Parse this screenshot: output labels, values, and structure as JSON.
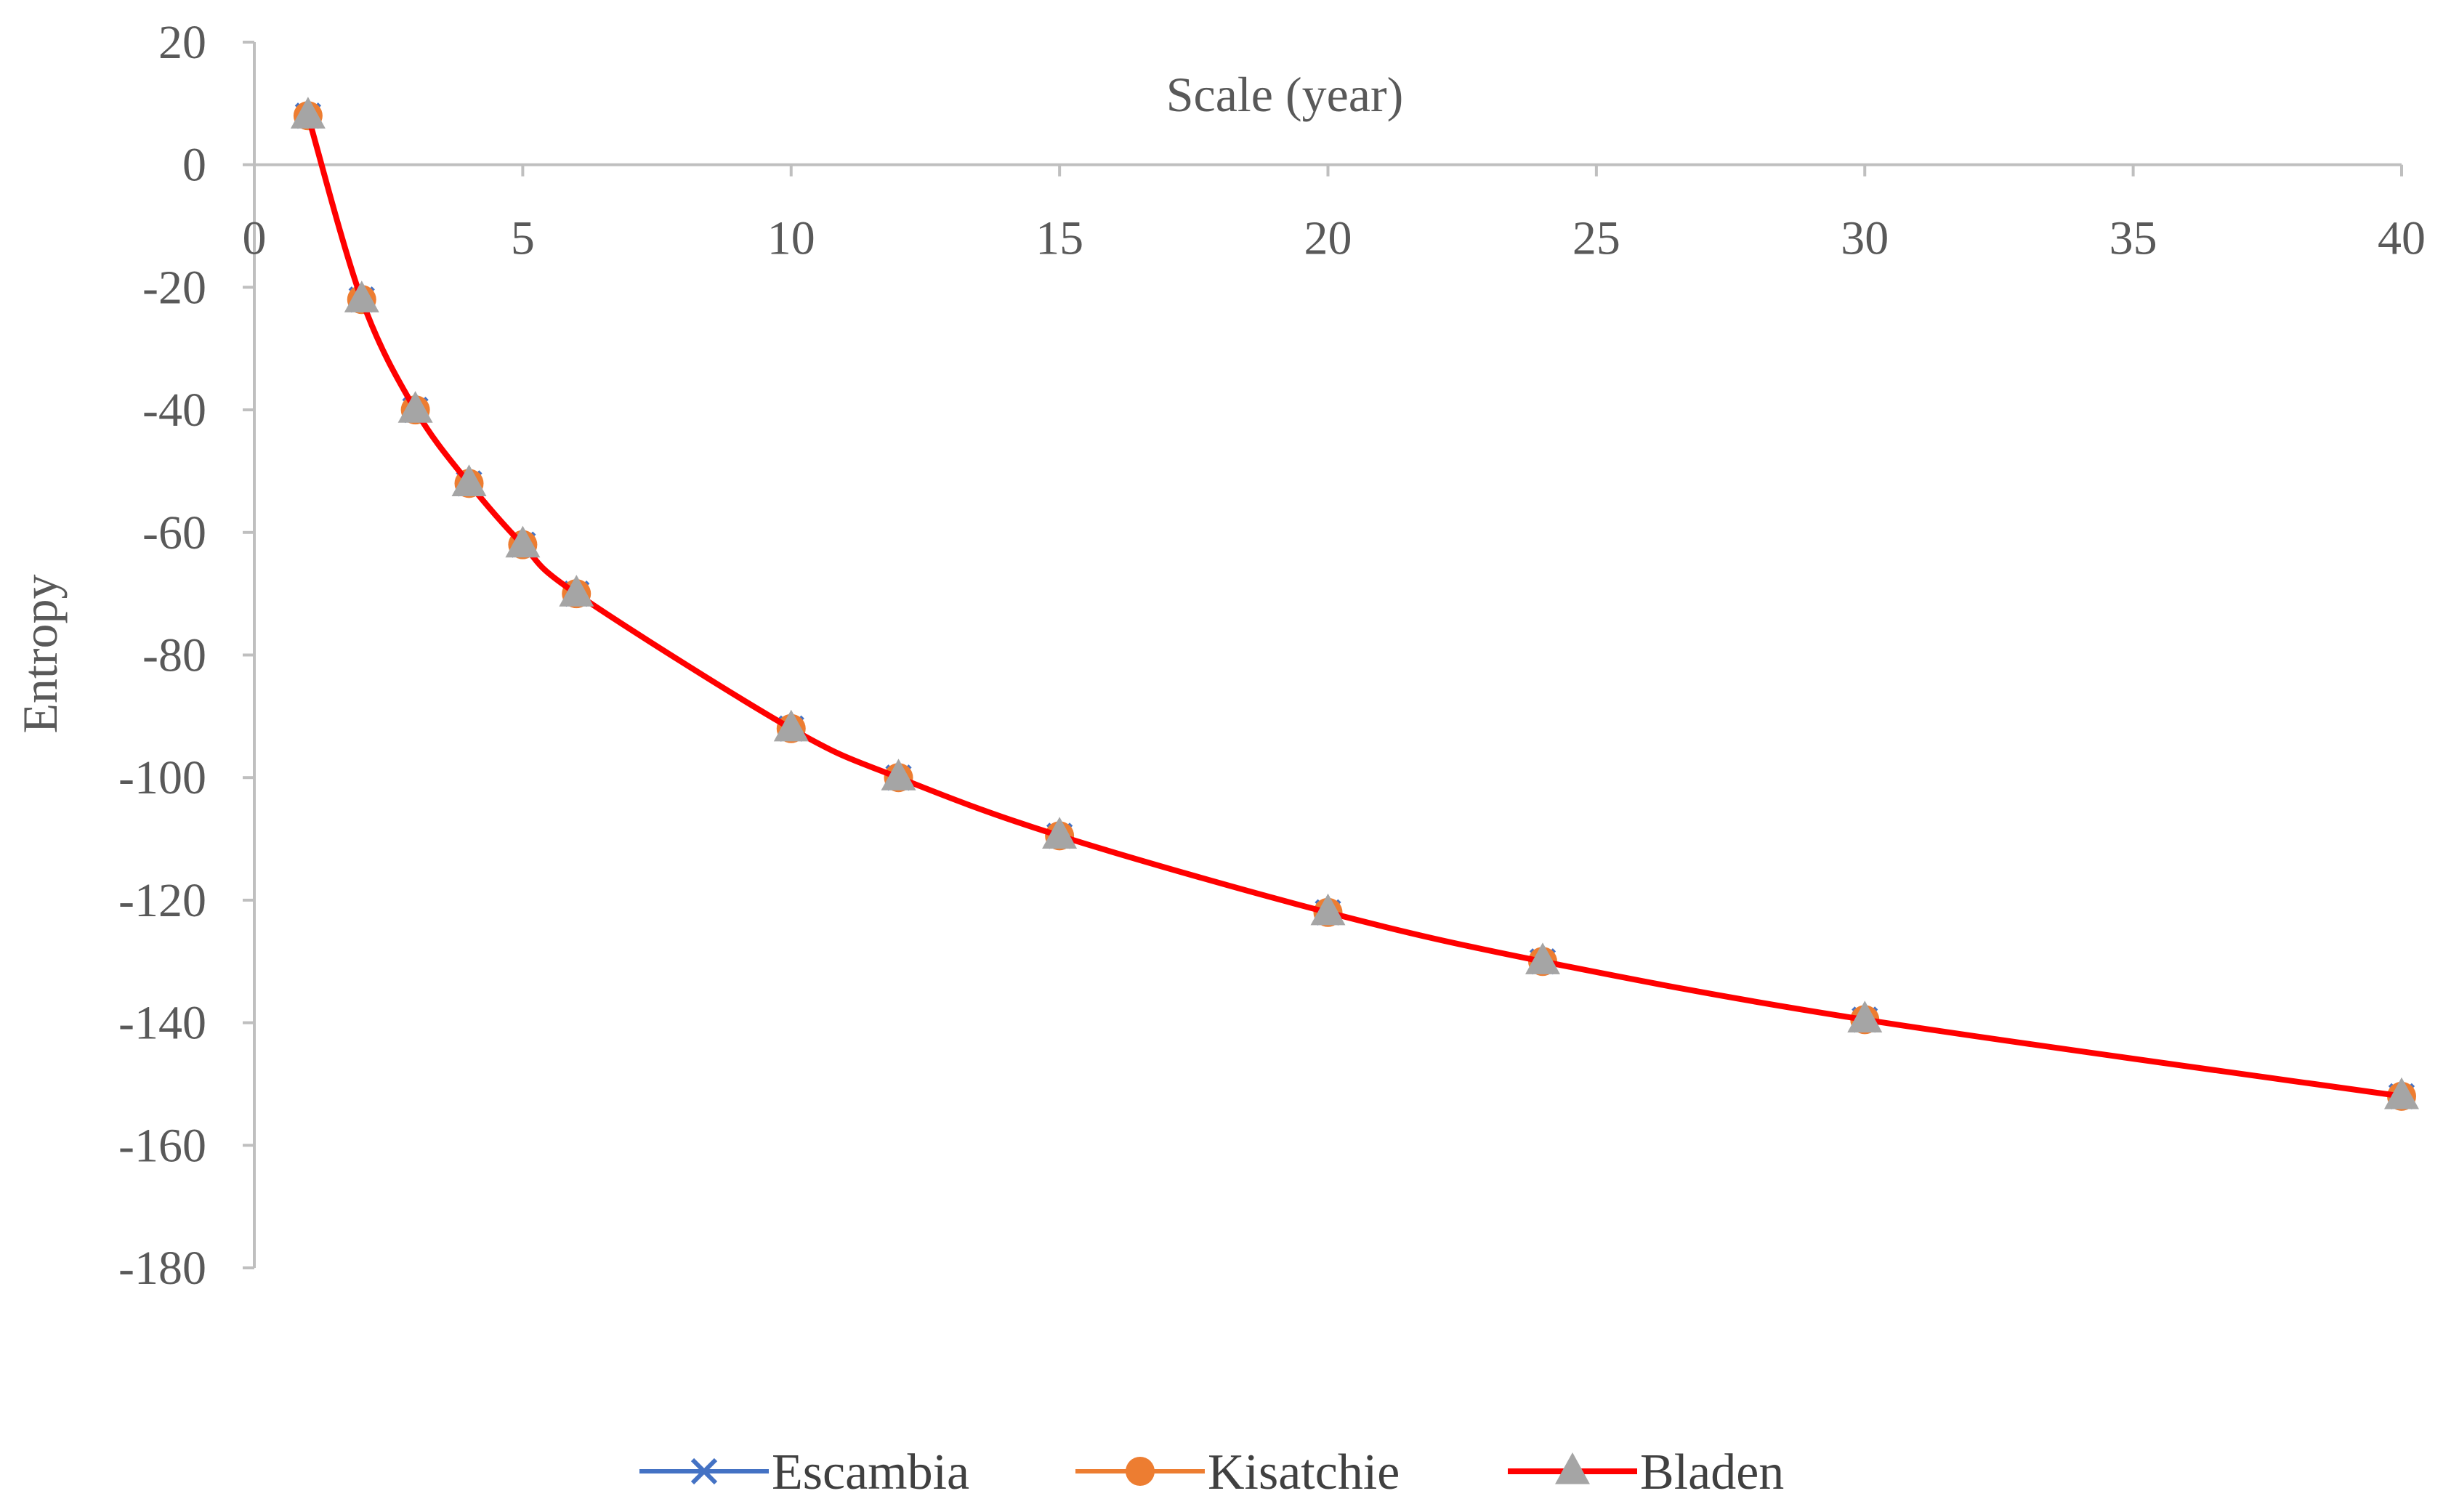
{
  "chart_data": {
    "type": "line",
    "title": "",
    "xlabel": "Scale (year)",
    "ylabel": "Entropy",
    "xlim": [
      0,
      40
    ],
    "ylim": [
      -180,
      20
    ],
    "xticks": [
      0,
      5,
      10,
      15,
      20,
      25,
      30,
      35,
      40
    ],
    "yticks": [
      20,
      0,
      -20,
      -40,
      -60,
      -80,
      -100,
      -120,
      -140,
      -160,
      -180
    ],
    "x_axis_crosses_at": 0,
    "grid": false,
    "legend_position": "bottom",
    "x": [
      1,
      2,
      3,
      4,
      5,
      6,
      10,
      12,
      15,
      20,
      24,
      30,
      40
    ],
    "series": [
      {
        "name": "Escambia",
        "color": "#4472C4",
        "marker": "x",
        "values": [
          8,
          -22,
          -40,
          -52,
          -62,
          -70,
          -92,
          -100,
          -109.5,
          -122,
          -130,
          -139.5,
          -152
        ]
      },
      {
        "name": "Kisatchie",
        "color": "#ED7D31",
        "marker": "circle",
        "values": [
          8,
          -22,
          -40,
          -52,
          -62,
          -70,
          -92,
          -100,
          -109.5,
          -122,
          -130,
          -139.5,
          -152
        ]
      },
      {
        "name": "Bladen",
        "color": "#FF0000",
        "marker": "triangle",
        "marker_color": "#A5A5A5",
        "values": [
          8,
          -22,
          -40,
          -52,
          -62,
          -70,
          -92,
          -100,
          -109.5,
          -122,
          -130,
          -139.5,
          -152
        ]
      }
    ]
  }
}
